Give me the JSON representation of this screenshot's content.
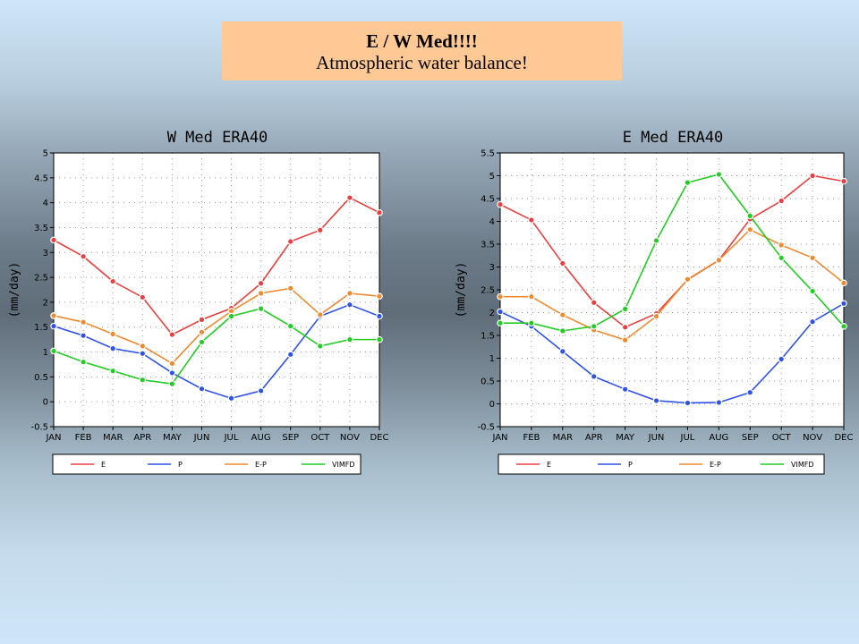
{
  "header": {
    "title": "E / W Med!!!!",
    "subtitle": "Atmospheric water balance!"
  },
  "colors": {
    "E": "#e84040",
    "P": "#2f52e8",
    "E-P": "#ee8a30",
    "VIMFD": "#22cc22"
  },
  "chart_data": [
    {
      "type": "line",
      "title": "W Med ERA40",
      "ylabel": "(mm/day)",
      "xlabel": "",
      "categories": [
        "JAN",
        "FEB",
        "MAR",
        "APR",
        "MAY",
        "JUN",
        "JUL",
        "AUG",
        "SEP",
        "OCT",
        "NOV",
        "DEC"
      ],
      "ylim": [
        -0.5,
        5
      ],
      "yticks": [
        "-0.5",
        "0",
        "0.5",
        "1",
        "1.5",
        "2",
        "2.5",
        "3",
        "3.5",
        "4",
        "4.5",
        "5"
      ],
      "grid": true,
      "legend": "bottom",
      "series": [
        {
          "name": "E",
          "values": [
            3.25,
            2.92,
            2.42,
            2.1,
            1.35,
            1.65,
            1.88,
            2.38,
            3.22,
            3.45,
            4.1,
            3.8
          ]
        },
        {
          "name": "P",
          "values": [
            1.52,
            1.33,
            1.07,
            0.97,
            0.58,
            0.26,
            0.07,
            0.22,
            0.95,
            1.72,
            1.95,
            1.72
          ]
        },
        {
          "name": "E-P",
          "values": [
            1.73,
            1.6,
            1.36,
            1.12,
            0.77,
            1.4,
            1.82,
            2.18,
            2.28,
            1.75,
            2.18,
            2.12
          ]
        },
        {
          "name": "VIMFD",
          "values": [
            1.02,
            0.8,
            0.62,
            0.44,
            0.36,
            1.2,
            1.72,
            1.87,
            1.52,
            1.12,
            1.25,
            1.25
          ]
        }
      ]
    },
    {
      "type": "line",
      "title": "E Med ERA40",
      "ylabel": "(mm/day)",
      "xlabel": "",
      "categories": [
        "JAN",
        "FEB",
        "MAR",
        "APR",
        "MAY",
        "JUN",
        "JUL",
        "AUG",
        "SEP",
        "OCT",
        "NOV",
        "DEC"
      ],
      "ylim": [
        -0.5,
        5.5
      ],
      "yticks": [
        "-0.5",
        "0",
        "0.5",
        "1",
        "1.5",
        "2",
        "2.5",
        "3",
        "3.5",
        "4",
        "4.5",
        "5",
        "5.5"
      ],
      "grid": true,
      "legend": "bottom",
      "series": [
        {
          "name": "E",
          "values": [
            4.37,
            4.03,
            3.08,
            2.22,
            1.68,
            1.98,
            2.72,
            3.15,
            4.05,
            4.45,
            5.0,
            4.88
          ]
        },
        {
          "name": "P",
          "values": [
            2.02,
            1.7,
            1.15,
            0.6,
            0.32,
            0.07,
            0.02,
            0.03,
            0.25,
            0.98,
            1.8,
            2.2
          ]
        },
        {
          "name": "E-P",
          "values": [
            2.35,
            2.35,
            1.95,
            1.62,
            1.4,
            1.92,
            2.73,
            3.15,
            3.82,
            3.48,
            3.2,
            2.65
          ]
        },
        {
          "name": "VIMFD",
          "values": [
            1.77,
            1.77,
            1.6,
            1.7,
            2.08,
            3.58,
            4.85,
            5.03,
            4.12,
            3.2,
            2.47,
            1.7
          ]
        }
      ]
    }
  ]
}
